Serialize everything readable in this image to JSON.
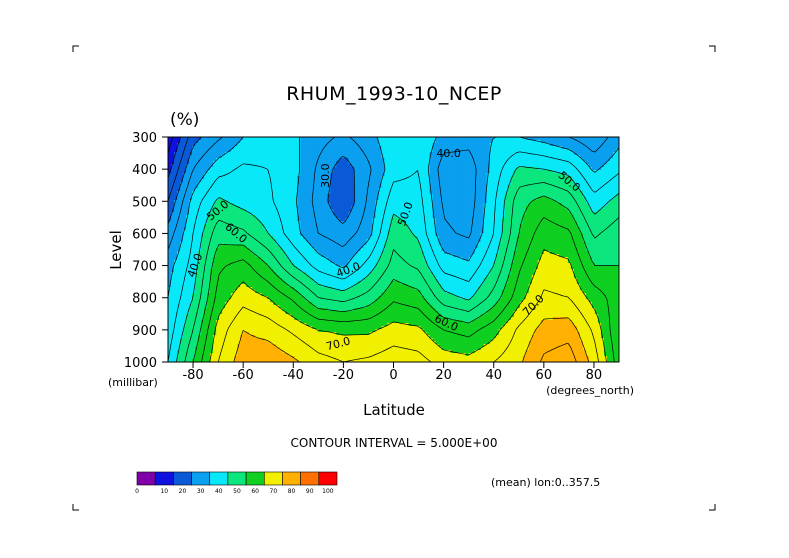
{
  "chart_data": {
    "type": "heatmap",
    "title": "RHUM_1993-10_NCEP",
    "units": "(%)",
    "xlabel": "Latitude",
    "x_units": "(degrees_north)",
    "ylabel": "Level",
    "y_units": "(millibar)",
    "xlim": [
      -90,
      90
    ],
    "ylim": [
      1000,
      300
    ],
    "x_ticks": [
      "-80",
      "-60",
      "-40",
      "-20",
      "0",
      "20",
      "40",
      "60",
      "80"
    ],
    "x_tick_values": [
      -80,
      -60,
      -40,
      -20,
      0,
      20,
      40,
      60,
      80
    ],
    "y_ticks": [
      "300",
      "400",
      "500",
      "600",
      "700",
      "800",
      "900",
      "1000"
    ],
    "y_tick_values": [
      300,
      400,
      500,
      600,
      700,
      800,
      900,
      1000
    ],
    "contour_interval_text": "CONTOUR INTERVAL = 5.000E+00",
    "mean_text": "(mean) lon:0..357.5",
    "contour_labels": [
      {
        "text": "30.0",
        "lat": -27,
        "lev": 420,
        "rot": -90
      },
      {
        "text": "40.0",
        "lat": 22,
        "lev": 353,
        "rot": 0
      },
      {
        "text": "50.0",
        "lat": 70,
        "lev": 440,
        "rot": 40
      },
      {
        "text": "50.0",
        "lat": -70,
        "lev": 530,
        "rot": -40
      },
      {
        "text": "50.0",
        "lat": 5,
        "lev": 540,
        "rot": -70
      },
      {
        "text": "60.0",
        "lat": -63,
        "lev": 600,
        "rot": 40
      },
      {
        "text": "40.0",
        "lat": -79,
        "lev": 700,
        "rot": -70
      },
      {
        "text": "40.0",
        "lat": -18,
        "lev": 715,
        "rot": -20
      },
      {
        "text": "70.0",
        "lat": 56,
        "lev": 825,
        "rot": -45
      },
      {
        "text": "60.0",
        "lat": 21,
        "lev": 880,
        "rot": 25
      },
      {
        "text": "70.0",
        "lat": -22,
        "lev": 945,
        "rot": -15
      }
    ],
    "colorbar": {
      "levels": [
        "0",
        "10",
        "20",
        "30",
        "40",
        "50",
        "60",
        "70",
        "80",
        "90",
        "100"
      ],
      "colors": [
        "#7f00a8",
        "#1010e0",
        "#0a5ad8",
        "#0a9fef",
        "#08e8f8",
        "#0be67d",
        "#0fcf20",
        "#f0f000",
        "#ffb000",
        "#ff7000",
        "#ff0000"
      ]
    },
    "lats": [
      -90,
      -80,
      -70,
      -60,
      -50,
      -40,
      -30,
      -20,
      -10,
      0,
      10,
      20,
      30,
      40,
      50,
      60,
      70,
      80,
      90
    ],
    "levels": [
      300,
      400,
      500,
      600,
      700,
      800,
      900,
      1000
    ],
    "values": [
      [
        12,
        28,
        34,
        40,
        42,
        41,
        37,
        34,
        38,
        44,
        45,
        38,
        37,
        40,
        40,
        38,
        35,
        31,
        38
      ],
      [
        18,
        35,
        43,
        46,
        45,
        42,
        34,
        27,
        34,
        43,
        45,
        32,
        32,
        42,
        51,
        50,
        48,
        39,
        44
      ],
      [
        25,
        42,
        51,
        48,
        46,
        41,
        33,
        25,
        36,
        48,
        47,
        34,
        32,
        44,
        58,
        62,
        58,
        47,
        52
      ],
      [
        32,
        45,
        58,
        56,
        50,
        42,
        35,
        32,
        38,
        53,
        49,
        36,
        34,
        45,
        60,
        68,
        66,
        54,
        58
      ],
      [
        38,
        47,
        64,
        67,
        60,
        50,
        43,
        39,
        47,
        57,
        54,
        43,
        41,
        50,
        64,
        72,
        71,
        60,
        60
      ],
      [
        40,
        50,
        67,
        73,
        70,
        64,
        55,
        53,
        57,
        64,
        62,
        52,
        49,
        57,
        68,
        76,
        75,
        68,
        62
      ],
      [
        42,
        55,
        72,
        80,
        78,
        74,
        70,
        69,
        69,
        72,
        71,
        65,
        63,
        68,
        76,
        82,
        83,
        74,
        60
      ],
      [
        45,
        60,
        75,
        83,
        84,
        81,
        77,
        75,
        76,
        78,
        77,
        73,
        72,
        75,
        79,
        86,
        88,
        78,
        62
      ]
    ]
  }
}
